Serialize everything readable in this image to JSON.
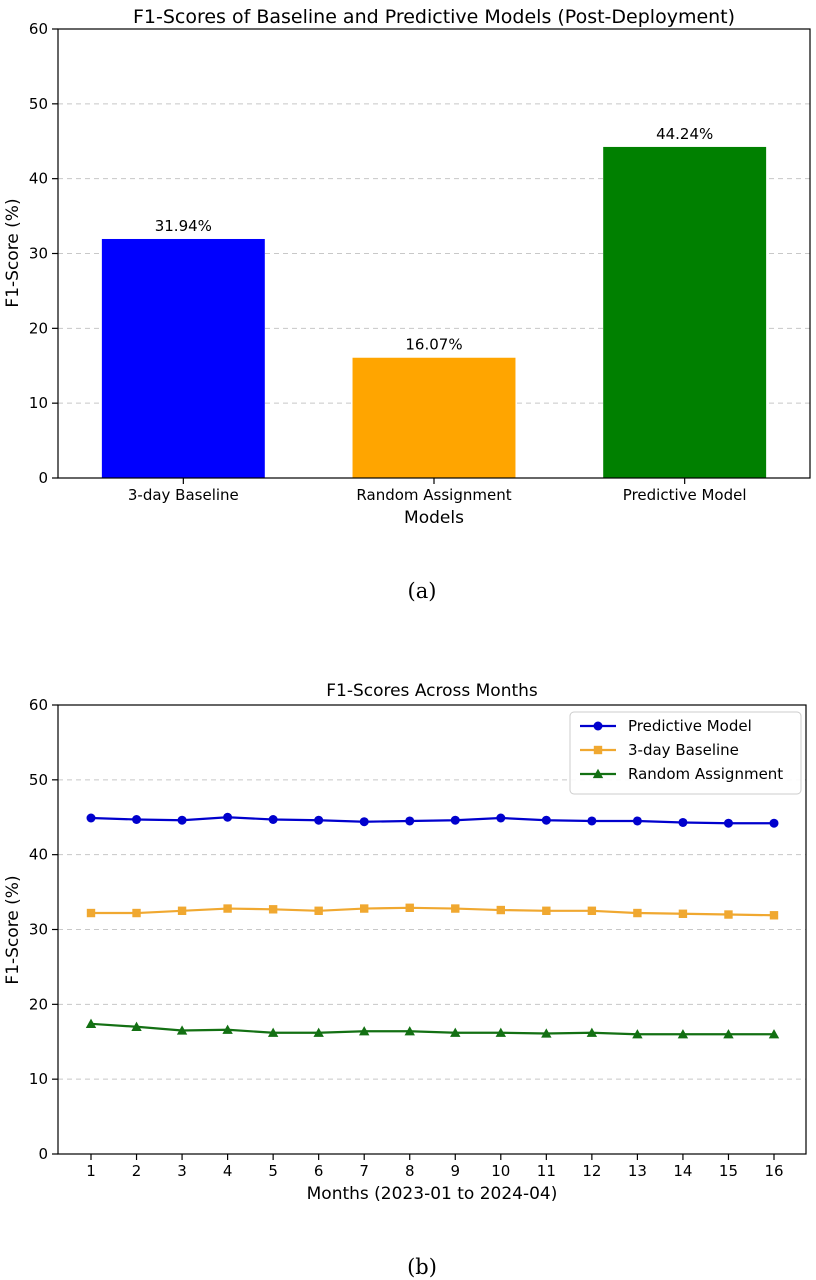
{
  "chart_data": [
    {
      "type": "bar",
      "title": "F1-Scores of Baseline and Predictive Models (Post-Deployment)",
      "xlabel": "Models",
      "ylabel": "F1-Score (%)",
      "ylim": [
        0,
        60
      ],
      "yticks": [
        0,
        10,
        20,
        30,
        40,
        50,
        60
      ],
      "grid": "y-dashed",
      "categories": [
        "3-day Baseline",
        "Random Assignment",
        "Predictive Model"
      ],
      "values": [
        31.94,
        16.07,
        44.24
      ],
      "value_labels": [
        "31.94%",
        "16.07%",
        "44.24%"
      ],
      "colors": [
        "#0000ff",
        "#ffa500",
        "#008000"
      ],
      "caption": "(a)"
    },
    {
      "type": "line",
      "title": "F1-Scores Across Months",
      "xlabel": "Months (2023-01 to 2024-04)",
      "ylabel": "F1-Score (%)",
      "ylim": [
        0,
        60
      ],
      "yticks": [
        0,
        10,
        20,
        30,
        40,
        50,
        60
      ],
      "grid": "y-dashed",
      "legend_position": "top-right",
      "x": [
        1,
        2,
        3,
        4,
        5,
        6,
        7,
        8,
        9,
        10,
        11,
        12,
        13,
        14,
        15,
        16
      ],
      "series": [
        {
          "name": "Predictive Model",
          "color": "#0000cd",
          "marker": "circle",
          "values": [
            44.9,
            44.7,
            44.6,
            45.0,
            44.7,
            44.6,
            44.4,
            44.5,
            44.6,
            44.9,
            44.6,
            44.5,
            44.5,
            44.3,
            44.2,
            44.2
          ]
        },
        {
          "name": "3-day Baseline",
          "color": "#f0a830",
          "marker": "square",
          "values": [
            32.2,
            32.2,
            32.5,
            32.8,
            32.7,
            32.5,
            32.8,
            32.9,
            32.8,
            32.6,
            32.5,
            32.5,
            32.2,
            32.1,
            32.0,
            31.9
          ]
        },
        {
          "name": "Random Assignment",
          "color": "#137013",
          "marker": "triangle",
          "values": [
            17.4,
            17.0,
            16.5,
            16.6,
            16.2,
            16.2,
            16.4,
            16.4,
            16.2,
            16.2,
            16.1,
            16.2,
            16.0,
            16.0,
            16.0,
            16.0
          ]
        }
      ],
      "caption": "(b)"
    }
  ]
}
